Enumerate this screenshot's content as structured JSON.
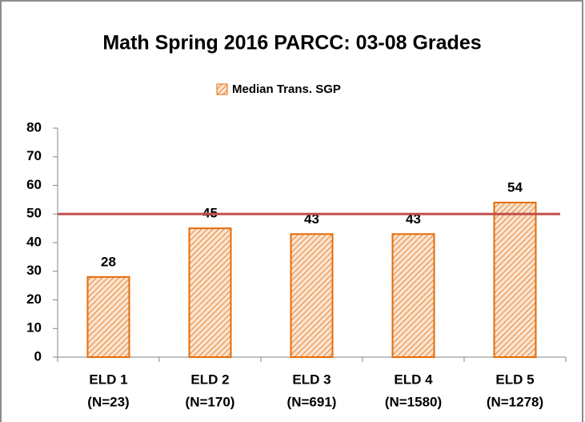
{
  "chart_data": {
    "type": "bar",
    "title": "Math Spring 2016 PARCC: 03-08 Grades",
    "categories": [
      [
        "ELD 1",
        "(N=23)"
      ],
      [
        "ELD 2",
        "(N=170)"
      ],
      [
        "ELD 3",
        "(N=691)"
      ],
      [
        "ELD 4",
        "(N=1580)"
      ],
      [
        "ELD 5",
        "(N=1278)"
      ]
    ],
    "series": [
      {
        "name": "Median Trans. SGP",
        "color": "#e46c0a",
        "values": [
          28,
          45,
          43,
          43,
          54
        ]
      }
    ],
    "ylim": [
      0,
      80
    ],
    "yticks": [
      0,
      10,
      20,
      30,
      40,
      50,
      60,
      70,
      80
    ],
    "reference_line": {
      "value": 50,
      "color": "#c0504d"
    },
    "legend": "top"
  }
}
